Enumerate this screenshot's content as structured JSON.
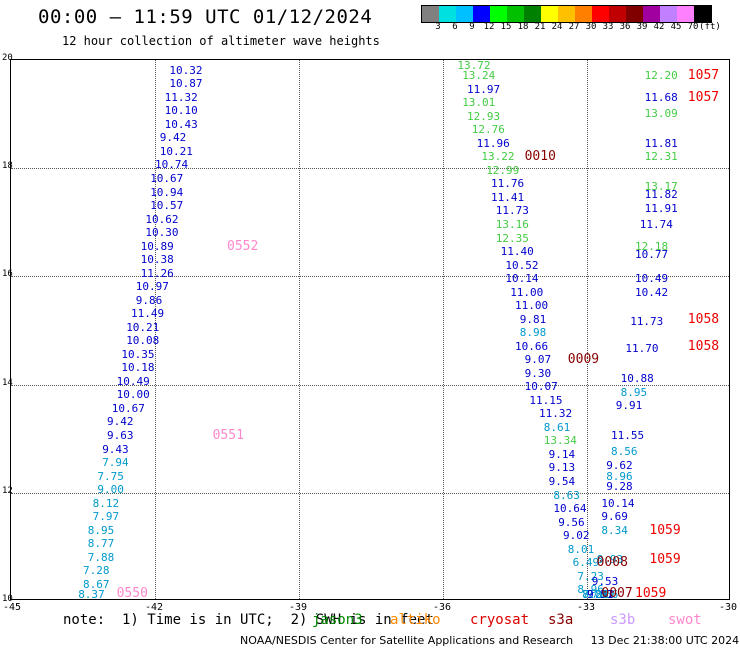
{
  "title": "00:00 – 11:59 UTC 01/12/2024",
  "subtitle": "12 hour collection of altimeter wave heights",
  "color_scale": {
    "colors": [
      "#808080",
      "#00e0e0",
      "#00c0ff",
      "#0000ff",
      "#00ff00",
      "#00c000",
      "#008000",
      "#ffff00",
      "#ffc000",
      "#ff8000",
      "#ff0000",
      "#c00000",
      "#800000",
      "#a000a0",
      "#c080ff",
      "#ff80ff",
      "#000000"
    ],
    "labels": [
      "3",
      "6",
      "9",
      "12",
      "15",
      "18",
      "21",
      "24",
      "27",
      "30",
      "33",
      "36",
      "39",
      "42",
      "45",
      "70",
      "(ft)"
    ]
  },
  "axes": {
    "x_ticks": [
      "-45",
      "-42",
      "-39",
      "-36",
      "-33",
      "-30"
    ],
    "y_ticks": [
      "20",
      "18",
      "16",
      "14",
      "12",
      "10"
    ],
    "xlim": [
      -45,
      -30
    ],
    "ylim": [
      10,
      20
    ]
  },
  "chart_data": {
    "type": "scatter",
    "xlim": [
      -45,
      -30
    ],
    "ylim": [
      10,
      20
    ],
    "grid": true,
    "observations": [
      {
        "lon": -41.7,
        "lat": 19.8,
        "v": "10.32",
        "c": "#0000cc"
      },
      {
        "lon": -41.7,
        "lat": 19.55,
        "v": "10.87",
        "c": "#0000cc"
      },
      {
        "lon": -41.8,
        "lat": 19.3,
        "v": "11.32",
        "c": "#0000cc"
      },
      {
        "lon": -41.8,
        "lat": 19.05,
        "v": "10.10",
        "c": "#0000cc"
      },
      {
        "lon": -41.8,
        "lat": 18.8,
        "v": "10.43",
        "c": "#0000cc"
      },
      {
        "lon": -41.9,
        "lat": 18.55,
        "v": "9.42",
        "c": "#0000cc"
      },
      {
        "lon": -41.9,
        "lat": 18.3,
        "v": "10.21",
        "c": "#0000cc"
      },
      {
        "lon": -42.0,
        "lat": 18.05,
        "v": "10.74",
        "c": "#0000cc"
      },
      {
        "lon": -42.1,
        "lat": 17.8,
        "v": "10.67",
        "c": "#0000cc"
      },
      {
        "lon": -42.1,
        "lat": 17.55,
        "v": "10.94",
        "c": "#0000cc"
      },
      {
        "lon": -42.1,
        "lat": 17.3,
        "v": "10.57",
        "c": "#0000cc"
      },
      {
        "lon": -42.2,
        "lat": 17.05,
        "v": "10.62",
        "c": "#0000cc"
      },
      {
        "lon": -42.2,
        "lat": 16.8,
        "v": "10.30",
        "c": "#0000cc"
      },
      {
        "lon": -42.3,
        "lat": 16.55,
        "v": "10.89",
        "c": "#0000cc"
      },
      {
        "lon": -42.3,
        "lat": 16.3,
        "v": "10.38",
        "c": "#0000cc"
      },
      {
        "lon": -42.3,
        "lat": 16.05,
        "v": "11.26",
        "c": "#0000cc"
      },
      {
        "lon": -42.4,
        "lat": 15.8,
        "v": "10.97",
        "c": "#0000cc"
      },
      {
        "lon": -42.4,
        "lat": 15.55,
        "v": "9.86",
        "c": "#0000cc"
      },
      {
        "lon": -42.5,
        "lat": 15.3,
        "v": "11.49",
        "c": "#0000cc"
      },
      {
        "lon": -42.6,
        "lat": 15.05,
        "v": "10.21",
        "c": "#0000cc"
      },
      {
        "lon": -42.6,
        "lat": 14.8,
        "v": "10.08",
        "c": "#0000cc"
      },
      {
        "lon": -42.7,
        "lat": 14.55,
        "v": "10.35",
        "c": "#0000cc"
      },
      {
        "lon": -42.7,
        "lat": 14.3,
        "v": "10.18",
        "c": "#0000cc"
      },
      {
        "lon": -42.8,
        "lat": 14.05,
        "v": "10.49",
        "c": "#0000cc"
      },
      {
        "lon": -42.8,
        "lat": 13.8,
        "v": "10.00",
        "c": "#0000cc"
      },
      {
        "lon": -42.9,
        "lat": 13.55,
        "v": "10.67",
        "c": "#0000cc"
      },
      {
        "lon": -43.0,
        "lat": 13.3,
        "v": "9.42",
        "c": "#0000cc"
      },
      {
        "lon": -43.0,
        "lat": 13.05,
        "v": "9.63",
        "c": "#0000cc"
      },
      {
        "lon": -43.1,
        "lat": 12.8,
        "v": "9.43",
        "c": "#0000cc"
      },
      {
        "lon": -43.1,
        "lat": 12.55,
        "v": "7.94",
        "c": "#0099cc"
      },
      {
        "lon": -43.2,
        "lat": 12.3,
        "v": "7.75",
        "c": "#0099cc"
      },
      {
        "lon": -43.2,
        "lat": 12.05,
        "v": "9.00",
        "c": "#0099cc"
      },
      {
        "lon": -43.3,
        "lat": 11.8,
        "v": "8.12",
        "c": "#0099cc"
      },
      {
        "lon": -43.3,
        "lat": 11.55,
        "v": "7.97",
        "c": "#0099cc"
      },
      {
        "lon": -43.4,
        "lat": 11.3,
        "v": "8.95",
        "c": "#0099cc"
      },
      {
        "lon": -43.4,
        "lat": 11.05,
        "v": "8.77",
        "c": "#0099cc"
      },
      {
        "lon": -43.4,
        "lat": 10.8,
        "v": "7.88",
        "c": "#0099cc"
      },
      {
        "lon": -43.5,
        "lat": 10.55,
        "v": "7.28",
        "c": "#0099cc"
      },
      {
        "lon": -43.5,
        "lat": 10.3,
        "v": "8.67",
        "c": "#0099cc"
      },
      {
        "lon": -43.6,
        "lat": 10.05,
        "v": "8.37",
        "c": "#0099cc"
      },
      {
        "lon": -35.7,
        "lat": 19.95,
        "v": "13.72",
        "c": "#44cc44"
      },
      {
        "lon": -35.6,
        "lat": 19.7,
        "v": "13.24",
        "c": "#44cc44"
      },
      {
        "lon": -35.5,
        "lat": 19.45,
        "v": "11.97",
        "c": "#0000cc"
      },
      {
        "lon": -35.6,
        "lat": 19.2,
        "v": "13.01",
        "c": "#44cc44"
      },
      {
        "lon": -35.5,
        "lat": 18.95,
        "v": "12.93",
        "c": "#44cc44"
      },
      {
        "lon": -35.4,
        "lat": 18.7,
        "v": "12.76",
        "c": "#44cc44"
      },
      {
        "lon": -35.3,
        "lat": 18.45,
        "v": "11.96",
        "c": "#0000cc"
      },
      {
        "lon": -35.2,
        "lat": 18.2,
        "v": "13.22",
        "c": "#44cc44"
      },
      {
        "lon": -35.1,
        "lat": 17.95,
        "v": "12.99",
        "c": "#44cc44"
      },
      {
        "lon": -35.0,
        "lat": 17.7,
        "v": "11.76",
        "c": "#0000cc"
      },
      {
        "lon": -35.0,
        "lat": 17.45,
        "v": "11.41",
        "c": "#0000cc"
      },
      {
        "lon": -34.9,
        "lat": 17.2,
        "v": "11.73",
        "c": "#0000cc"
      },
      {
        "lon": -34.9,
        "lat": 16.95,
        "v": "13.16",
        "c": "#44cc44"
      },
      {
        "lon": -34.9,
        "lat": 16.7,
        "v": "12.35",
        "c": "#44cc44"
      },
      {
        "lon": -34.8,
        "lat": 16.45,
        "v": "11.40",
        "c": "#0000cc"
      },
      {
        "lon": -34.7,
        "lat": 16.2,
        "v": "10.52",
        "c": "#0000cc"
      },
      {
        "lon": -34.7,
        "lat": 15.95,
        "v": "10.14",
        "c": "#0000cc"
      },
      {
        "lon": -34.6,
        "lat": 15.7,
        "v": "11.00",
        "c": "#0000cc"
      },
      {
        "lon": -34.5,
        "lat": 15.45,
        "v": "11.00",
        "c": "#0000cc"
      },
      {
        "lon": -34.4,
        "lat": 15.2,
        "v": "9.81",
        "c": "#0000cc"
      },
      {
        "lon": -34.4,
        "lat": 14.95,
        "v": "8.98",
        "c": "#0099cc"
      },
      {
        "lon": -34.5,
        "lat": 14.7,
        "v": "10.66",
        "c": "#0000cc"
      },
      {
        "lon": -34.3,
        "lat": 14.45,
        "v": "9.07",
        "c": "#0000cc"
      },
      {
        "lon": -34.3,
        "lat": 14.2,
        "v": "9.30",
        "c": "#0000cc"
      },
      {
        "lon": -34.3,
        "lat": 13.95,
        "v": "10.07",
        "c": "#0000cc"
      },
      {
        "lon": -34.2,
        "lat": 13.7,
        "v": "11.15",
        "c": "#0000cc"
      },
      {
        "lon": -34.0,
        "lat": 13.45,
        "v": "11.32",
        "c": "#0000cc"
      },
      {
        "lon": -33.9,
        "lat": 13.2,
        "v": "8.61",
        "c": "#0099cc"
      },
      {
        "lon": -33.9,
        "lat": 12.95,
        "v": "13.34",
        "c": "#44cc44"
      },
      {
        "lon": -33.8,
        "lat": 12.7,
        "v": "9.14",
        "c": "#0000cc"
      },
      {
        "lon": -33.8,
        "lat": 12.45,
        "v": "9.13",
        "c": "#0000cc"
      },
      {
        "lon": -33.8,
        "lat": 12.2,
        "v": "9.54",
        "c": "#0000cc"
      },
      {
        "lon": -33.7,
        "lat": 11.95,
        "v": "8.63",
        "c": "#0099cc"
      },
      {
        "lon": -33.7,
        "lat": 11.7,
        "v": "10.64",
        "c": "#0000cc"
      },
      {
        "lon": -33.6,
        "lat": 11.45,
        "v": "9.56",
        "c": "#0000cc"
      },
      {
        "lon": -33.5,
        "lat": 11.2,
        "v": "9.02",
        "c": "#0000cc"
      },
      {
        "lon": -33.4,
        "lat": 10.95,
        "v": "8.01",
        "c": "#0099cc"
      },
      {
        "lon": -33.3,
        "lat": 10.7,
        "v": "6.49",
        "c": "#0099cc"
      },
      {
        "lon": -33.2,
        "lat": 10.45,
        "v": "7.23",
        "c": "#0099cc"
      },
      {
        "lon": -33.2,
        "lat": 10.2,
        "v": "8.96",
        "c": "#0099cc"
      },
      {
        "lon": -33.1,
        "lat": 9.95,
        "v": "7.21",
        "c": "#0099cc"
      },
      {
        "lon": -33.0,
        "lat": 9.7,
        "v": "7.63",
        "c": "#0099cc"
      },
      {
        "lon": -32.9,
        "lat": 9.45,
        "v": "7.66",
        "c": "#0099cc"
      },
      {
        "lon": -31.8,
        "lat": 19.7,
        "v": "12.20",
        "c": "#44cc44"
      },
      {
        "lon": -31.8,
        "lat": 19.3,
        "v": "11.68",
        "c": "#0000cc"
      },
      {
        "lon": -31.8,
        "lat": 19.0,
        "v": "13.09",
        "c": "#44cc44"
      },
      {
        "lon": -31.8,
        "lat": 18.45,
        "v": "11.81",
        "c": "#0000cc"
      },
      {
        "lon": -31.8,
        "lat": 18.2,
        "v": "12.31",
        "c": "#44cc44"
      },
      {
        "lon": -31.8,
        "lat": 17.65,
        "v": "13.17",
        "c": "#44cc44"
      },
      {
        "lon": -31.8,
        "lat": 17.5,
        "v": "11.82",
        "c": "#0000cc"
      },
      {
        "lon": -31.8,
        "lat": 17.25,
        "v": "11.91",
        "c": "#0000cc"
      },
      {
        "lon": -31.9,
        "lat": 16.95,
        "v": "11.74",
        "c": "#0000cc"
      },
      {
        "lon": -32.0,
        "lat": 16.55,
        "v": "12.18",
        "c": "#44cc44"
      },
      {
        "lon": -32.0,
        "lat": 16.4,
        "v": "10.77",
        "c": "#0000cc"
      },
      {
        "lon": -32.0,
        "lat": 15.95,
        "v": "10.49",
        "c": "#0000cc"
      },
      {
        "lon": -32.0,
        "lat": 15.7,
        "v": "10.42",
        "c": "#0000cc"
      },
      {
        "lon": -32.1,
        "lat": 15.15,
        "v": "11.73",
        "c": "#0000cc"
      },
      {
        "lon": -32.2,
        "lat": 14.65,
        "v": "11.70",
        "c": "#0000cc"
      },
      {
        "lon": -32.3,
        "lat": 14.1,
        "v": "10.88",
        "c": "#0000cc"
      },
      {
        "lon": -32.3,
        "lat": 13.85,
        "v": "8.95",
        "c": "#0099cc"
      },
      {
        "lon": -32.4,
        "lat": 13.6,
        "v": "9.91",
        "c": "#0000cc"
      },
      {
        "lon": -32.5,
        "lat": 13.05,
        "v": "11.55",
        "c": "#0000cc"
      },
      {
        "lon": -32.5,
        "lat": 12.75,
        "v": "8.56",
        "c": "#0099cc"
      },
      {
        "lon": -32.6,
        "lat": 12.5,
        "v": "9.62",
        "c": "#0000cc"
      },
      {
        "lon": -32.6,
        "lat": 12.3,
        "v": "8.96",
        "c": "#0099cc"
      },
      {
        "lon": -32.6,
        "lat": 12.1,
        "v": "9.28",
        "c": "#0000cc"
      },
      {
        "lon": -32.7,
        "lat": 11.8,
        "v": "10.14",
        "c": "#0000cc"
      },
      {
        "lon": -32.7,
        "lat": 11.55,
        "v": "9.69",
        "c": "#0000cc"
      },
      {
        "lon": -32.7,
        "lat": 11.3,
        "v": "8.34",
        "c": "#0099cc"
      },
      {
        "lon": -32.8,
        "lat": 10.75,
        "v": "8.93",
        "c": "#0099cc"
      },
      {
        "lon": -32.9,
        "lat": 10.35,
        "v": "9.53",
        "c": "#0000cc"
      },
      {
        "lon": -33.0,
        "lat": 9.85,
        "v": "9.11",
        "c": "#0000cc"
      },
      {
        "lon": -33.0,
        "lat": 9.7,
        "v": "9.57",
        "c": "#0000cc"
      },
      {
        "lon": -33.1,
        "lat": 9.3,
        "v": "8.39",
        "c": "#0099cc"
      },
      {
        "lon": -33.1,
        "lat": 9.15,
        "v": "8.88",
        "c": "#0099cc"
      }
    ],
    "pass_labels": [
      {
        "lon": -40.5,
        "lat": 16.55,
        "t": "0552",
        "c": "#ff88cc"
      },
      {
        "lon": -40.8,
        "lat": 13.05,
        "t": "0551",
        "c": "#ff88cc"
      },
      {
        "lon": -42.8,
        "lat": 10.05,
        "t": "0550",
        "c": "#ff88cc"
      },
      {
        "lon": -34.3,
        "lat": 18.2,
        "t": "0010",
        "c": "#880000"
      },
      {
        "lon": -33.4,
        "lat": 14.45,
        "t": "0009",
        "c": "#880000"
      },
      {
        "lon": -32.8,
        "lat": 10.7,
        "t": "0008",
        "c": "#880000"
      },
      {
        "lon": -32.7,
        "lat": 9.45,
        "t": "0007",
        "c": "#880000"
      },
      {
        "lon": -30.9,
        "lat": 19.7,
        "t": "1057",
        "c": "#ee0000"
      },
      {
        "lon": -30.9,
        "lat": 19.3,
        "t": "1057",
        "c": "#ee0000"
      },
      {
        "lon": -30.9,
        "lat": 15.2,
        "t": "1058",
        "c": "#ee0000"
      },
      {
        "lon": -30.9,
        "lat": 14.7,
        "t": "1058",
        "c": "#ee0000"
      },
      {
        "lon": -31.7,
        "lat": 11.3,
        "t": "1059",
        "c": "#ee0000"
      },
      {
        "lon": -31.7,
        "lat": 10.75,
        "t": "1059",
        "c": "#ee0000"
      },
      {
        "lon": -32.0,
        "lat": 9.45,
        "t": "1059",
        "c": "#ee0000"
      }
    ]
  },
  "note": {
    "text": "note:  1) Time is in UTC;  2) SWH is in feet",
    "legend": [
      {
        "label": "jason3",
        "color": "#008800"
      },
      {
        "label": "altiko",
        "color": "#ff8800"
      },
      {
        "label": "cryosat",
        "color": "#dd0000"
      },
      {
        "label": "s3a",
        "color": "#880000"
      },
      {
        "label": "s3b",
        "color": "#cc99ff"
      },
      {
        "label": "swot",
        "color": "#ff88cc"
      }
    ]
  },
  "credit": "NOAA/NESDIS Center for Satellite Applications and Research     13 Dec 21:38:00 UTC 2024"
}
